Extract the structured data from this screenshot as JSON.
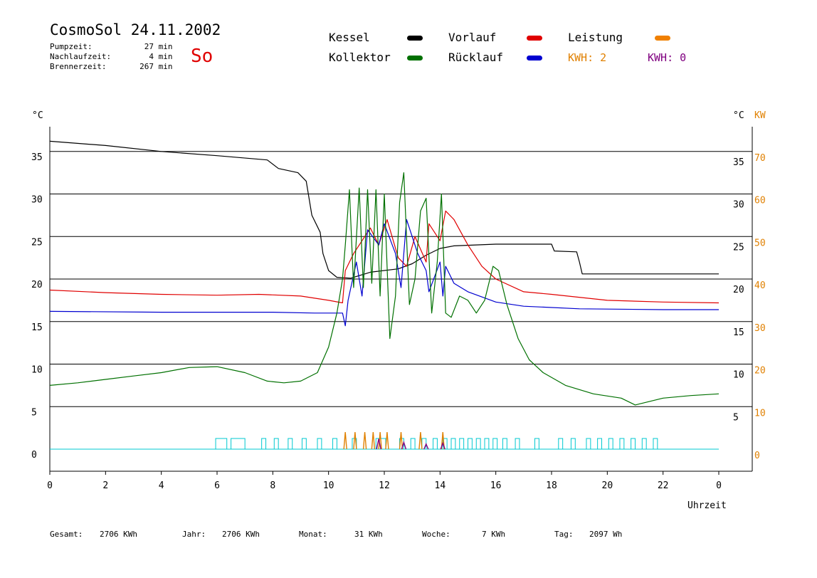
{
  "header": {
    "title": "CosmoSol 24.11.2002",
    "day": "So",
    "info": [
      {
        "label": "Pumpzeit:",
        "value": "27",
        "unit": "min"
      },
      {
        "label": "Nachlaufzeit:",
        "value": "4",
        "unit": "min"
      },
      {
        "label": "Brennerzeit:",
        "value": "267",
        "unit": "min"
      }
    ]
  },
  "legend": [
    {
      "name": "Kessel",
      "color": "#000000"
    },
    {
      "name": "Vorlauf",
      "color": "#e00000"
    },
    {
      "name": "Leistung",
      "color": "#f08000"
    },
    {
      "name": "Kollektor",
      "color": "#007000"
    },
    {
      "name": "Rücklauf",
      "color": "#0000d0"
    }
  ],
  "kwh": [
    {
      "text": "KWH: 2",
      "color": "#e08000"
    },
    {
      "text": "KWH: 0",
      "color": "#800080"
    }
  ],
  "footer": [
    {
      "label": "Gesamt:",
      "value": "2706 KWh"
    },
    {
      "label": "Jahr:",
      "value": "2706 KWh"
    },
    {
      "label": "Monat:",
      "value": "31 KWh"
    },
    {
      "label": "Woche:",
      "value": "7 KWh"
    },
    {
      "label": "Tag:",
      "value": "2097 Wh"
    }
  ],
  "chart_data": {
    "type": "line",
    "xlabel": "Uhrzeit",
    "ylabel_left": "°C",
    "ylabel_right": "°C",
    "ylabel_right2": "KW",
    "x_ticks": [
      "0",
      "2",
      "4",
      "6",
      "8",
      "10",
      "12",
      "14",
      "16",
      "18",
      "20",
      "22",
      "0"
    ],
    "xlim": [
      0,
      24
    ],
    "ylim": [
      0,
      40
    ],
    "y_ticks": [
      0,
      5,
      10,
      15,
      20,
      25,
      30,
      35
    ],
    "kw_ticks": [
      0,
      10,
      20,
      30,
      40,
      50,
      60,
      70
    ],
    "grid": "horizontal",
    "colors": {
      "grid": "#000000",
      "kw_axis": "#e08000",
      "pump": "#00c8d0",
      "kwh_purple": "#800080"
    },
    "series": [
      {
        "name": "Kessel",
        "color": "#000000",
        "points": [
          [
            0,
            36.2
          ],
          [
            2,
            35.7
          ],
          [
            4,
            35.0
          ],
          [
            6,
            34.5
          ],
          [
            7.8,
            34.0
          ],
          [
            8.2,
            33.0
          ],
          [
            8.9,
            32.5
          ],
          [
            9.2,
            31.5
          ],
          [
            9.4,
            27.5
          ],
          [
            9.7,
            25.5
          ],
          [
            9.8,
            23.0
          ],
          [
            10.0,
            21.0
          ],
          [
            10.3,
            20.2
          ],
          [
            10.8,
            20.1
          ],
          [
            11.5,
            20.8
          ],
          [
            12.5,
            21.2
          ],
          [
            13.0,
            21.8
          ],
          [
            13.5,
            22.8
          ],
          [
            14.0,
            23.6
          ],
          [
            14.5,
            23.9
          ],
          [
            16,
            24.1
          ],
          [
            18.0,
            24.1
          ],
          [
            18.1,
            23.3
          ],
          [
            18.9,
            23.2
          ],
          [
            19.0,
            22.0
          ],
          [
            19.1,
            20.6
          ],
          [
            24,
            20.6
          ]
        ]
      },
      {
        "name": "Vorlauf",
        "color": "#e00000",
        "points": [
          [
            0,
            18.7
          ],
          [
            2,
            18.4
          ],
          [
            4,
            18.2
          ],
          [
            6,
            18.1
          ],
          [
            7.5,
            18.2
          ],
          [
            9.0,
            18.0
          ],
          [
            10.0,
            17.5
          ],
          [
            10.5,
            17.2
          ],
          [
            10.6,
            21.0
          ],
          [
            10.9,
            23.0
          ],
          [
            11.2,
            24.5
          ],
          [
            11.5,
            26.0
          ],
          [
            11.8,
            24.0
          ],
          [
            12.1,
            27.0
          ],
          [
            12.5,
            22.5
          ],
          [
            12.8,
            21.5
          ],
          [
            13.1,
            25.0
          ],
          [
            13.5,
            22.0
          ],
          [
            13.6,
            26.5
          ],
          [
            14.0,
            24.5
          ],
          [
            14.2,
            28.0
          ],
          [
            14.5,
            27.0
          ],
          [
            15.0,
            24.0
          ],
          [
            15.5,
            21.5
          ],
          [
            16,
            20.0
          ],
          [
            17,
            18.5
          ],
          [
            18,
            18.2
          ],
          [
            20,
            17.5
          ],
          [
            22,
            17.3
          ],
          [
            24,
            17.2
          ]
        ]
      },
      {
        "name": "Rücklauf",
        "color": "#0000d0",
        "points": [
          [
            0,
            16.2
          ],
          [
            4,
            16.1
          ],
          [
            8,
            16.1
          ],
          [
            9.5,
            16.0
          ],
          [
            10.5,
            16.0
          ],
          [
            10.6,
            14.5
          ],
          [
            10.7,
            17.5
          ],
          [
            11.0,
            22.0
          ],
          [
            11.2,
            18.0
          ],
          [
            11.4,
            25.8
          ],
          [
            11.8,
            24.0
          ],
          [
            12.0,
            26.5
          ],
          [
            12.4,
            23.0
          ],
          [
            12.6,
            19.0
          ],
          [
            12.8,
            27.0
          ],
          [
            13.2,
            23.0
          ],
          [
            13.5,
            21.0
          ],
          [
            13.6,
            18.5
          ],
          [
            14.0,
            22.0
          ],
          [
            14.1,
            18.0
          ],
          [
            14.2,
            21.5
          ],
          [
            14.5,
            19.5
          ],
          [
            15,
            18.5
          ],
          [
            16,
            17.3
          ],
          [
            17,
            16.8
          ],
          [
            19,
            16.5
          ],
          [
            22,
            16.4
          ],
          [
            24,
            16.4
          ]
        ]
      },
      {
        "name": "Kollektor",
        "color": "#007000",
        "points": [
          [
            0,
            7.5
          ],
          [
            1,
            7.8
          ],
          [
            2,
            8.2
          ],
          [
            3,
            8.6
          ],
          [
            4,
            9.0
          ],
          [
            5,
            9.6
          ],
          [
            6,
            9.7
          ],
          [
            7,
            9.0
          ],
          [
            7.8,
            8.0
          ],
          [
            8.4,
            7.8
          ],
          [
            9.0,
            8.0
          ],
          [
            9.6,
            9.0
          ],
          [
            10.0,
            12.0
          ],
          [
            10.3,
            16.0
          ],
          [
            10.5,
            20.0
          ],
          [
            10.6,
            24.0
          ],
          [
            10.75,
            30.5
          ],
          [
            10.9,
            19.0
          ],
          [
            11.1,
            30.7
          ],
          [
            11.25,
            19.0
          ],
          [
            11.4,
            30.5
          ],
          [
            11.55,
            19.5
          ],
          [
            11.7,
            30.5
          ],
          [
            11.85,
            18.0
          ],
          [
            12.0,
            30.0
          ],
          [
            12.2,
            13.0
          ],
          [
            12.4,
            18.0
          ],
          [
            12.55,
            29.0
          ],
          [
            12.7,
            32.5
          ],
          [
            12.9,
            17.0
          ],
          [
            13.1,
            20.0
          ],
          [
            13.3,
            28.0
          ],
          [
            13.5,
            29.5
          ],
          [
            13.7,
            16.0
          ],
          [
            13.9,
            22.0
          ],
          [
            14.05,
            30.0
          ],
          [
            14.2,
            16.0
          ],
          [
            14.4,
            15.5
          ],
          [
            14.7,
            18.0
          ],
          [
            15.0,
            17.5
          ],
          [
            15.3,
            16.0
          ],
          [
            15.6,
            17.5
          ],
          [
            15.9,
            21.5
          ],
          [
            16.1,
            21.0
          ],
          [
            16.4,
            17.0
          ],
          [
            16.8,
            13.0
          ],
          [
            17.2,
            10.5
          ],
          [
            17.7,
            9.0
          ],
          [
            18.5,
            7.5
          ],
          [
            19.5,
            6.5
          ],
          [
            20.5,
            6.0
          ],
          [
            21.0,
            5.2
          ],
          [
            22,
            6.0
          ],
          [
            23,
            6.3
          ],
          [
            24,
            6.5
          ]
        ]
      }
    ],
    "leistung_peaks": [
      [
        10.6,
        2.0
      ],
      [
        10.95,
        2.0
      ],
      [
        11.3,
        2.0
      ],
      [
        11.6,
        2.0
      ],
      [
        11.85,
        2.0
      ],
      [
        12.1,
        2.0
      ],
      [
        12.6,
        2.0
      ],
      [
        13.3,
        2.0
      ],
      [
        14.1,
        2.0
      ]
    ],
    "kwh_peaks": [
      [
        11.8,
        1.2
      ],
      [
        12.7,
        0.8
      ],
      [
        13.5,
        0.6
      ],
      [
        14.1,
        0.7
      ]
    ],
    "pump_intervals": [
      [
        5.95,
        6.35
      ],
      [
        6.5,
        7.0
      ],
      [
        7.6,
        7.75
      ],
      [
        8.05,
        8.2
      ],
      [
        8.55,
        8.7
      ],
      [
        9.05,
        9.2
      ],
      [
        9.6,
        9.75
      ],
      [
        10.15,
        10.3
      ],
      [
        10.85,
        11.0
      ],
      [
        11.7,
        12.05
      ],
      [
        12.55,
        12.7
      ],
      [
        12.95,
        13.1
      ],
      [
        13.35,
        13.5
      ],
      [
        13.75,
        13.9
      ],
      [
        14.1,
        14.25
      ],
      [
        14.4,
        14.55
      ],
      [
        14.7,
        14.85
      ],
      [
        15.0,
        15.15
      ],
      [
        15.3,
        15.45
      ],
      [
        15.6,
        15.75
      ],
      [
        15.9,
        16.05
      ],
      [
        16.25,
        16.4
      ],
      [
        16.7,
        16.85
      ],
      [
        17.4,
        17.55
      ],
      [
        18.25,
        18.4
      ],
      [
        18.7,
        18.85
      ],
      [
        19.25,
        19.4
      ],
      [
        19.65,
        19.8
      ],
      [
        20.05,
        20.2
      ],
      [
        20.45,
        20.6
      ],
      [
        20.85,
        21.0
      ],
      [
        21.25,
        21.4
      ],
      [
        21.65,
        21.8
      ]
    ]
  }
}
